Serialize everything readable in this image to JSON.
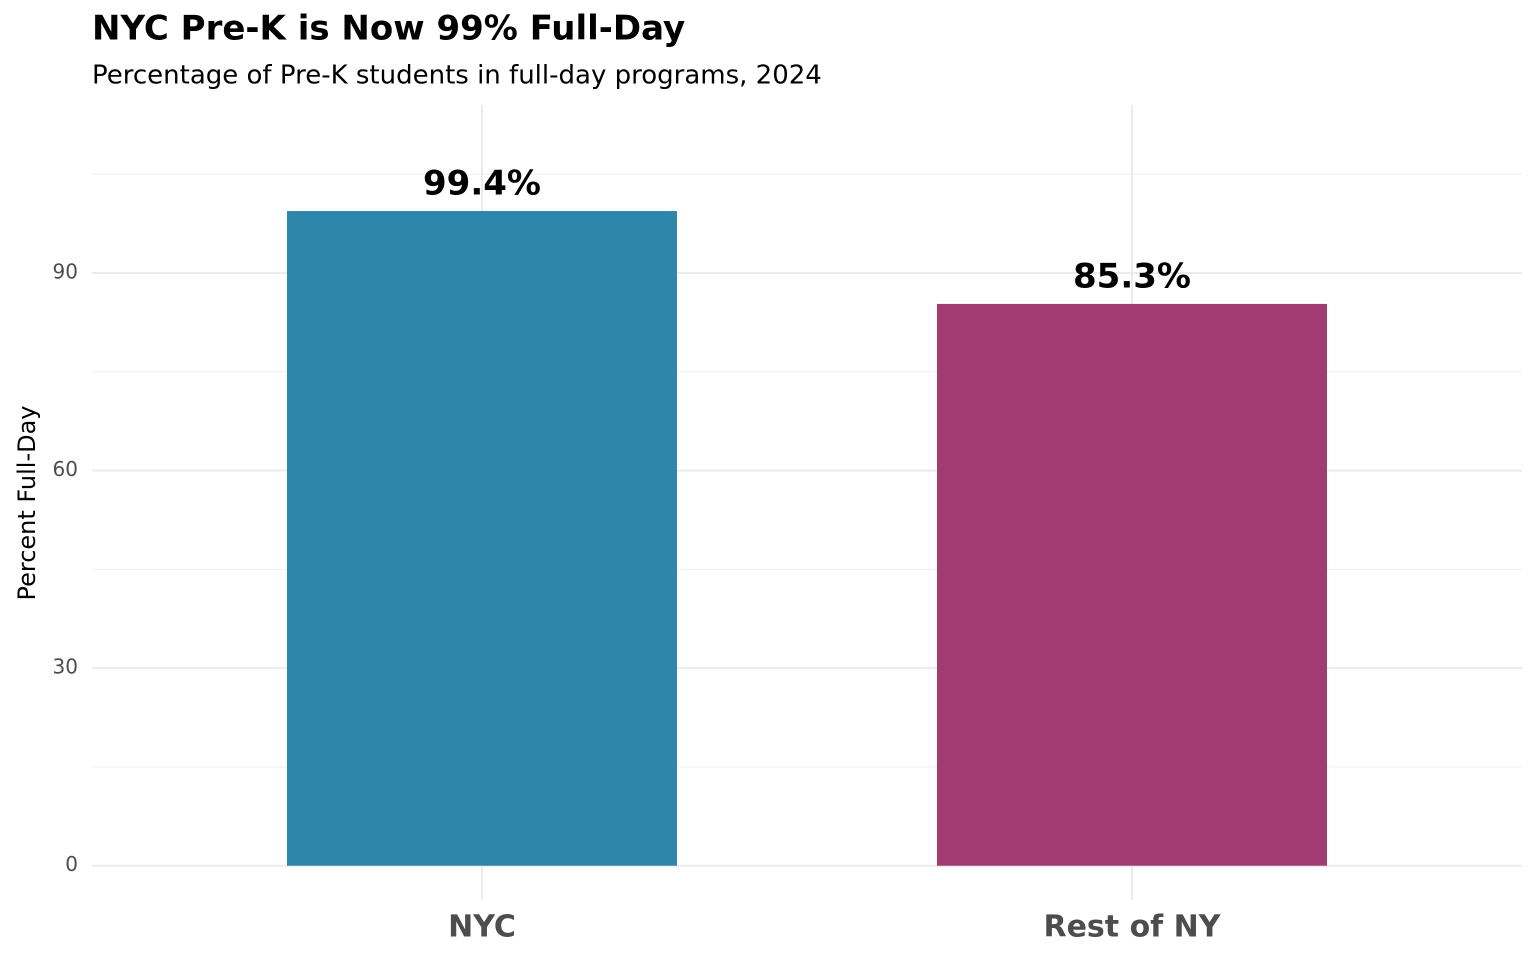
{
  "chart_data": {
    "type": "bar",
    "title": "NYC Pre-K is Now 99% Full-Day",
    "subtitle": "Percentage of Pre-K students in full-day programs, 2024",
    "y_label": "Percent Full-Day",
    "categories": [
      "NYC",
      "Rest of NY"
    ],
    "values": [
      99.4,
      85.3
    ],
    "value_labels": [
      "99.4%",
      "85.3%"
    ],
    "colors": [
      "#2E86AB",
      "#A23B72"
    ],
    "ylim": [
      -5.2,
      115.5
    ],
    "yticks": [
      0,
      30,
      60,
      90
    ],
    "minor_yticks": [
      15,
      45,
      75,
      105
    ],
    "grid": true
  }
}
